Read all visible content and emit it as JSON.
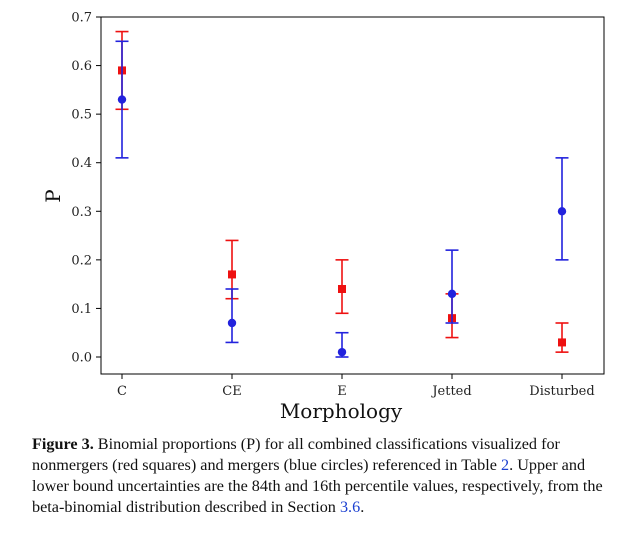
{
  "chart_data": {
    "type": "scatter",
    "title": "",
    "xlabel": "Morphology",
    "ylabel": "P",
    "categories": [
      "C",
      "CE",
      "E",
      "Jetted",
      "Disturbed"
    ],
    "ylim": [
      -0.035,
      0.7
    ],
    "yticks": [
      "0.0",
      "0.1",
      "0.2",
      "0.3",
      "0.4",
      "0.5",
      "0.6",
      "0.7"
    ],
    "grid": false,
    "series": [
      {
        "color": "#ee1111",
        "marker": "square",
        "values": [
          0.59,
          0.17,
          0.14,
          0.08,
          0.03
        ],
        "lower": [
          0.51,
          0.12,
          0.09,
          0.04,
          0.01
        ],
        "upper": [
          0.67,
          0.24,
          0.2,
          0.13,
          0.07
        ]
      },
      {
        "color": "#2222dd",
        "marker": "circle",
        "values": [
          0.53,
          0.07,
          0.01,
          0.13,
          0.3
        ],
        "lower": [
          0.41,
          0.03,
          0.0,
          0.07,
          0.2
        ],
        "upper": [
          0.65,
          0.14,
          0.05,
          0.22,
          0.41
        ]
      }
    ]
  },
  "caption": {
    "label": "Figure 3.",
    "part1": " Binomial proportions (P) for all combined classifications visualized for nonmergers (red squares) and mergers (blue circles) referenced in Table ",
    "table_ref": "2",
    "part2": ". Upper and lower bound uncertainties are the 84th and 16th percentile values, respectively, from the beta-binomial distribution described in Section ",
    "section_ref": "3.6",
    "part3": "."
  }
}
